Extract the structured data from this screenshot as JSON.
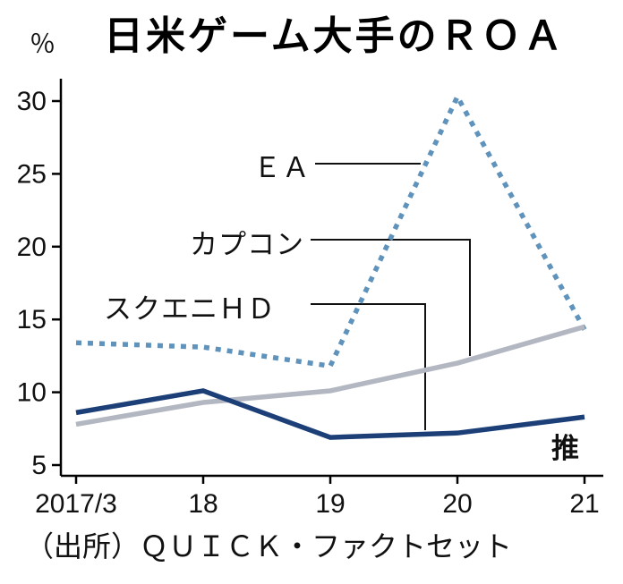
{
  "title": "日米ゲーム大手のＲＯＡ",
  "y_unit": "％",
  "estimate_label": "推",
  "source": "（出所）ＱＵＩＣＫ・ファクトセット",
  "chart_data": {
    "type": "line",
    "title": "日米ゲーム大手のＲＯＡ",
    "xlabel": "",
    "ylabel": "％",
    "categories": [
      "2017/3",
      "18",
      "19",
      "20",
      "21"
    ],
    "series": [
      {
        "name": "ＥＡ",
        "values": [
          13.4,
          13.1,
          11.8,
          30.3,
          14.3
        ],
        "color": "#5f93bc",
        "dash": true
      },
      {
        "name": "カプコン",
        "values": [
          7.8,
          9.3,
          10.1,
          12.0,
          14.5
        ],
        "color": "#b3b7c2",
        "dash": false
      },
      {
        "name": "スクエニＨＤ",
        "values": [
          8.6,
          10.1,
          6.9,
          7.2,
          8.3
        ],
        "color": "#1c3f77",
        "dash": false
      }
    ],
    "ylim": [
      5,
      30
    ],
    "yticks": [
      5,
      10,
      15,
      20,
      25,
      30
    ],
    "grid": false,
    "legend": "inline-annotations",
    "note": "21 is an estimate (推)"
  }
}
